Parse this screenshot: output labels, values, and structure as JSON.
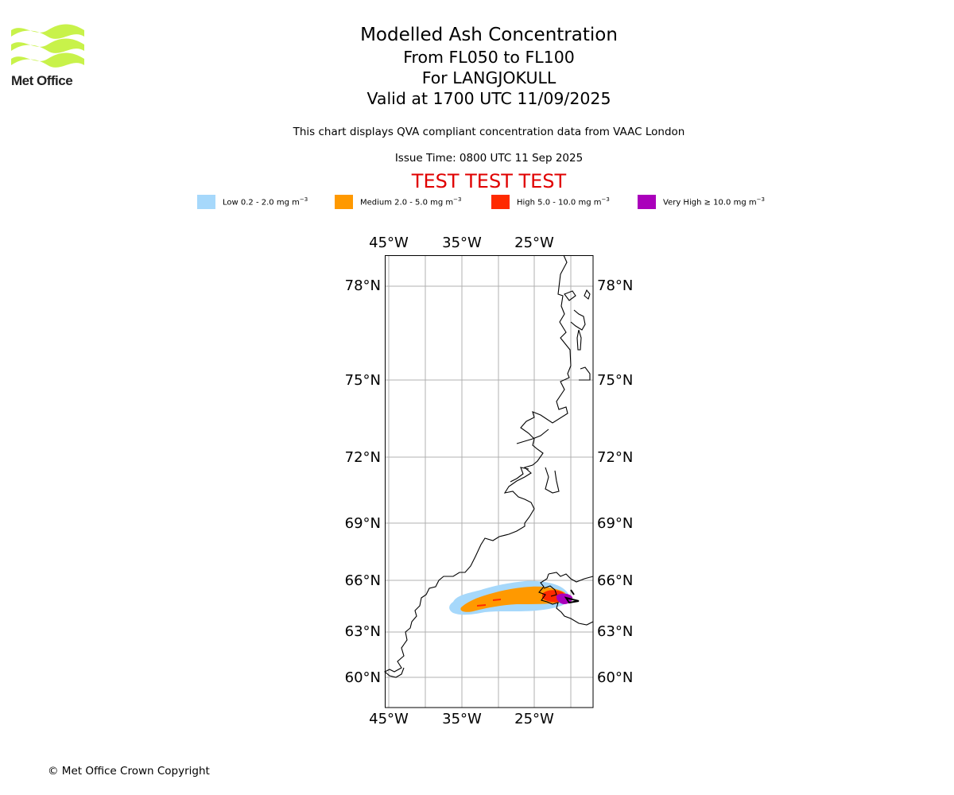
{
  "logo": {
    "text": "Met Office",
    "color": "#c8f24a"
  },
  "title": {
    "line1": "Modelled Ash Concentration",
    "line2": "From FL050 to FL100",
    "line3": "For LANGJOKULL",
    "line4": "Valid at 1700 UTC 11/09/2025"
  },
  "description": "This chart displays QVA compliant concentration data from VAAC London",
  "issue_time": "Issue Time: 0800 UTC 11 Sep 2025",
  "test_banner": "TEST TEST TEST",
  "legend": [
    {
      "label": "Low 0.2 - 2.0 mg m",
      "unit_sup": "−3",
      "color": "#a6d8fb"
    },
    {
      "label": "Medium 2.0 - 5.0 mg m",
      "unit_sup": "−3",
      "color": "#ff9900"
    },
    {
      "label": "High 5.0 - 10.0 mg m",
      "unit_sup": "−3",
      "color": "#ff2a00"
    },
    {
      "label": "Very High  ≥  10.0 mg m",
      "unit_sup": "−3",
      "color": "#aa00bb"
    }
  ],
  "map": {
    "lon_labels": [
      "45°W",
      "35°W",
      "25°W"
    ],
    "lat_labels": [
      "78°N",
      "75°N",
      "72°N",
      "69°N",
      "66°N",
      "63°N",
      "60°N"
    ]
  },
  "copyright": "© Met Office Crown Copyright"
}
